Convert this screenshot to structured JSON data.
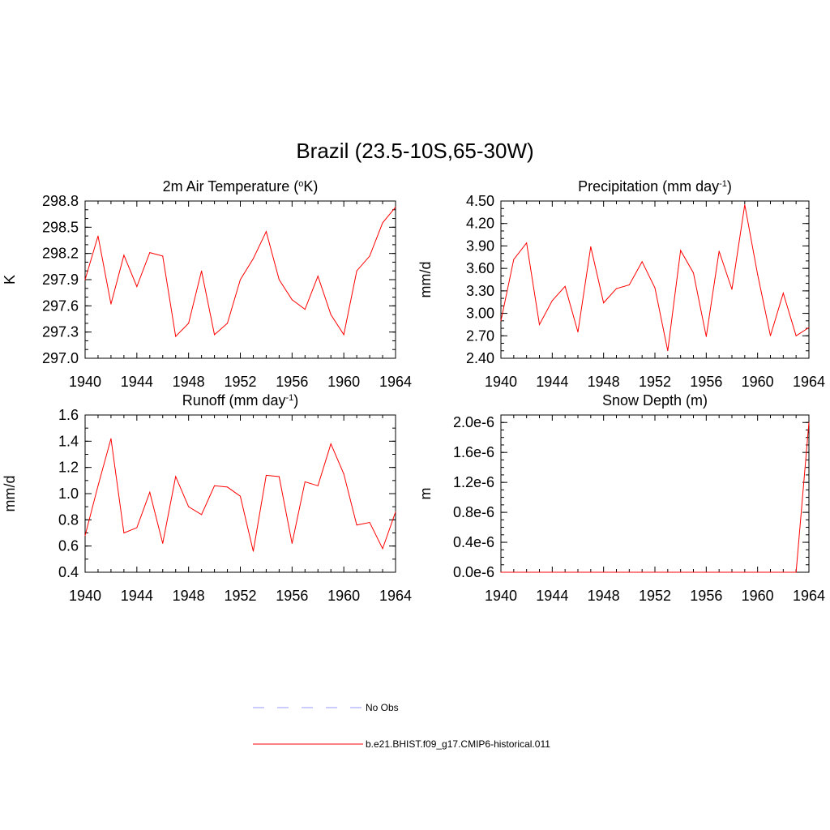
{
  "figure": {
    "title": "Brazil (23.5-10S,65-30W)"
  },
  "legend": {
    "items": [
      {
        "label": "No Obs",
        "style": "dashed",
        "color": "#9999ff"
      },
      {
        "label": "b.e21.BHIST.f09_g17.CMIP6-historical.011",
        "style": "solid",
        "color": "#ff0000"
      }
    ]
  },
  "colors": {
    "series": "#ff0000",
    "axis": "#000000"
  },
  "chart_data": [
    {
      "type": "line",
      "title": "2m Air Temperature (",
      "title_sup": "o",
      "title_after": "K)",
      "ylabel": "K",
      "x": [
        1940,
        1941,
        1942,
        1943,
        1944,
        1945,
        1946,
        1947,
        1948,
        1949,
        1950,
        1951,
        1952,
        1953,
        1954,
        1955,
        1956,
        1957,
        1958,
        1959,
        1960,
        1961,
        1962,
        1963,
        1964
      ],
      "series": [
        {
          "values": [
            297.9,
            298.4,
            297.62,
            298.18,
            297.82,
            298.21,
            298.17,
            297.25,
            297.4,
            298.0,
            297.27,
            297.4,
            297.9,
            298.14,
            298.45,
            297.9,
            297.67,
            297.56,
            297.94,
            297.5,
            297.27,
            298.0,
            298.17,
            298.55,
            298.73
          ]
        }
      ],
      "xlim": [
        1940,
        1964
      ],
      "ylim": [
        297.0,
        298.8
      ],
      "xticks": [
        1940,
        1944,
        1948,
        1952,
        1956,
        1960,
        1964
      ],
      "yticks": [
        297.0,
        297.3,
        297.6,
        297.9,
        298.2,
        298.5,
        298.8
      ],
      "ytick_labels": [
        "297.0",
        "297.3",
        "297.6",
        "297.9",
        "298.2",
        "298.5",
        "298.8"
      ],
      "y_minor_step": 0.1
    },
    {
      "type": "line",
      "title": "Precipitation (mm day",
      "title_sup": "-1",
      "title_after": ")",
      "ylabel": "mm/d",
      "x": [
        1940,
        1941,
        1942,
        1943,
        1944,
        1945,
        1946,
        1947,
        1948,
        1949,
        1950,
        1951,
        1952,
        1953,
        1954,
        1955,
        1956,
        1957,
        1958,
        1959,
        1960,
        1961,
        1962,
        1963,
        1964
      ],
      "series": [
        {
          "values": [
            2.9,
            3.72,
            3.94,
            2.85,
            3.17,
            3.36,
            2.75,
            3.89,
            3.14,
            3.33,
            3.38,
            3.69,
            3.34,
            2.5,
            3.84,
            3.54,
            2.69,
            3.83,
            3.32,
            4.45,
            3.52,
            2.7,
            3.27,
            2.7,
            2.81
          ]
        }
      ],
      "xlim": [
        1940,
        1964
      ],
      "ylim": [
        2.4,
        4.5
      ],
      "xticks": [
        1940,
        1944,
        1948,
        1952,
        1956,
        1960,
        1964
      ],
      "yticks": [
        2.4,
        2.7,
        3.0,
        3.3,
        3.6,
        3.9,
        4.2,
        4.5
      ],
      "ytick_labels": [
        "2.40",
        "2.70",
        "3.00",
        "3.30",
        "3.60",
        "3.90",
        "4.20",
        "4.50"
      ],
      "y_minor_step": 0.1
    },
    {
      "type": "line",
      "title": "Runoff (mm day",
      "title_sup": "-1",
      "title_after": ")",
      "ylabel": "mm/d",
      "x": [
        1940,
        1941,
        1942,
        1943,
        1944,
        1945,
        1946,
        1947,
        1948,
        1949,
        1950,
        1951,
        1952,
        1953,
        1954,
        1955,
        1956,
        1957,
        1958,
        1959,
        1960,
        1961,
        1962,
        1963,
        1964
      ],
      "series": [
        {
          "values": [
            0.68,
            1.06,
            1.42,
            0.7,
            0.74,
            1.01,
            0.62,
            1.13,
            0.9,
            0.84,
            1.06,
            1.05,
            0.98,
            0.56,
            1.14,
            1.13,
            0.62,
            1.09,
            1.06,
            1.38,
            1.15,
            0.76,
            0.78,
            0.58,
            0.86
          ]
        }
      ],
      "xlim": [
        1940,
        1964
      ],
      "ylim": [
        0.4,
        1.6
      ],
      "xticks": [
        1940,
        1944,
        1948,
        1952,
        1956,
        1960,
        1964
      ],
      "yticks": [
        0.4,
        0.6,
        0.8,
        1.0,
        1.2,
        1.4,
        1.6
      ],
      "ytick_labels": [
        "0.4",
        "0.6",
        "0.8",
        "1.0",
        "1.2",
        "1.4",
        "1.6"
      ],
      "y_minor_step": 0.1
    },
    {
      "type": "line",
      "title": "Snow Depth (m)",
      "title_sup": "",
      "title_after": "",
      "ylabel": "m",
      "x": [
        1940,
        1941,
        1942,
        1943,
        1944,
        1945,
        1946,
        1947,
        1948,
        1949,
        1950,
        1951,
        1952,
        1953,
        1954,
        1955,
        1956,
        1957,
        1958,
        1959,
        1960,
        1961,
        1962,
        1963,
        1964
      ],
      "series": [
        {
          "values": [
            0,
            0,
            0,
            0,
            0,
            0,
            0,
            0,
            0,
            0,
            0,
            0,
            0,
            0,
            0,
            0,
            0,
            0,
            0,
            0,
            0,
            0,
            0,
            0,
            2e-06
          ]
        }
      ],
      "xlim": [
        1940,
        1964
      ],
      "ylim": [
        0,
        2.1e-06
      ],
      "xticks": [
        1940,
        1944,
        1948,
        1952,
        1956,
        1960,
        1964
      ],
      "yticks": [
        0,
        4e-07,
        8e-07,
        1.2e-06,
        1.6e-06,
        2e-06
      ],
      "ytick_labels": [
        "0.0e-6",
        "0.4e-6",
        "0.8e-6",
        "1.2e-6",
        "1.6e-6",
        "2.0e-6"
      ],
      "y_minor_step": 1e-07
    }
  ]
}
